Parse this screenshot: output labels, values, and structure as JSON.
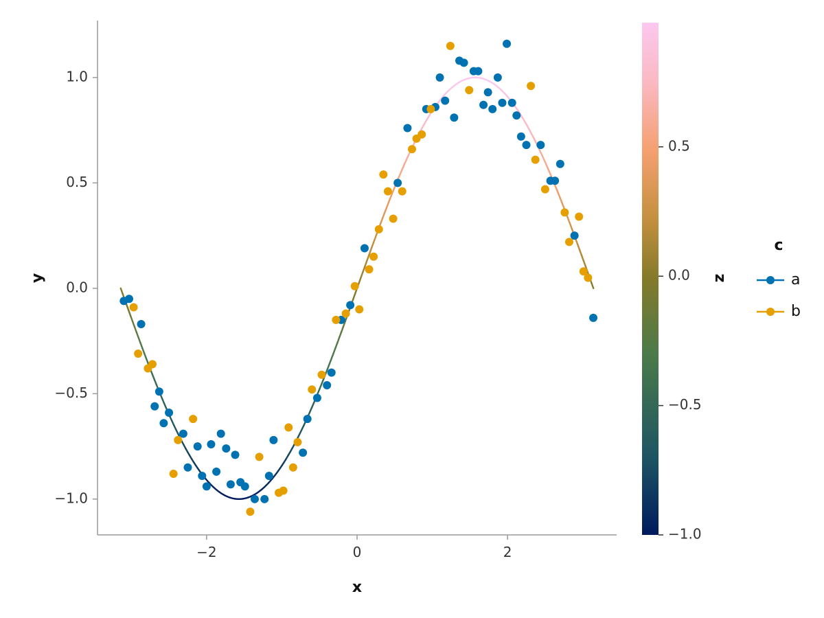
{
  "chart_data": {
    "type": "scatter",
    "xlabel": "x",
    "ylabel": "y",
    "xlim": [
      -3.45,
      3.45
    ],
    "ylim": [
      -1.17,
      1.27
    ],
    "x_ticks": [
      -2,
      0,
      2
    ],
    "x_tick_labels": [
      "−2",
      "0",
      "2"
    ],
    "y_ticks": [
      -1.0,
      -0.5,
      0.0,
      0.5,
      1.0
    ],
    "y_tick_labels": [
      "−1.0",
      "−0.5",
      "0.0",
      "0.5",
      "1.0"
    ],
    "grid": false,
    "curve": {
      "function": "sin(x)",
      "x_range": [
        -3.1416,
        3.1416
      ],
      "colored_by": "z"
    },
    "colorbar": {
      "label": "z",
      "range": [
        -1.0,
        0.98
      ],
      "ticks": [
        -1.0,
        -0.5,
        0.0,
        0.5
      ],
      "tick_labels": [
        "−1.0",
        "−0.5",
        "0.0",
        "0.5"
      ],
      "colormap": [
        "#001a5e",
        "#1d5463",
        "#4a7a4a",
        "#847a2a",
        "#c59040",
        "#f4a070",
        "#fab8c0",
        "#fcc8f0"
      ],
      "colormap_positions": [
        0.0,
        0.15,
        0.35,
        0.5,
        0.62,
        0.75,
        0.88,
        1.0
      ]
    },
    "legend": {
      "title": "c",
      "placement": "right",
      "entries": [
        {
          "label": "a",
          "color": "#0072B2"
        },
        {
          "label": "b",
          "color": "#E69F00"
        }
      ]
    },
    "series": [
      {
        "name": "a",
        "color": "#0072B2",
        "points": [
          [
            -3.1,
            -0.06
          ],
          [
            -3.03,
            -0.05
          ],
          [
            -2.87,
            -0.17
          ],
          [
            -2.63,
            -0.49
          ],
          [
            -2.69,
            -0.56
          ],
          [
            -2.57,
            -0.64
          ],
          [
            -2.5,
            -0.59
          ],
          [
            -2.31,
            -0.69
          ],
          [
            -2.25,
            -0.85
          ],
          [
            -2.12,
            -0.75
          ],
          [
            -2.06,
            -0.89
          ],
          [
            -2.0,
            -0.94
          ],
          [
            -1.94,
            -0.74
          ],
          [
            -1.87,
            -0.87
          ],
          [
            -1.81,
            -0.69
          ],
          [
            -1.74,
            -0.76
          ],
          [
            -1.68,
            -0.93
          ],
          [
            -1.62,
            -0.79
          ],
          [
            -1.55,
            -0.92
          ],
          [
            -1.49,
            -0.94
          ],
          [
            -1.36,
            -1.0
          ],
          [
            -1.23,
            -1.0
          ],
          [
            -1.17,
            -0.89
          ],
          [
            -1.11,
            -0.72
          ],
          [
            -0.72,
            -0.78
          ],
          [
            -0.66,
            -0.62
          ],
          [
            -0.53,
            -0.52
          ],
          [
            -0.4,
            -0.46
          ],
          [
            -0.34,
            -0.4
          ],
          [
            -0.21,
            -0.15
          ],
          [
            -0.09,
            -0.08
          ],
          [
            0.1,
            0.19
          ],
          [
            0.54,
            0.5
          ],
          [
            0.67,
            0.76
          ],
          [
            0.92,
            0.85
          ],
          [
            1.04,
            0.86
          ],
          [
            1.1,
            1.0
          ],
          [
            1.17,
            0.89
          ],
          [
            1.29,
            0.81
          ],
          [
            1.36,
            1.08
          ],
          [
            1.42,
            1.07
          ],
          [
            1.55,
            1.03
          ],
          [
            1.61,
            1.03
          ],
          [
            1.68,
            0.87
          ],
          [
            1.74,
            0.93
          ],
          [
            1.8,
            0.85
          ],
          [
            1.87,
            1.0
          ],
          [
            1.93,
            0.88
          ],
          [
            1.99,
            1.16
          ],
          [
            2.06,
            0.88
          ],
          [
            2.12,
            0.82
          ],
          [
            2.18,
            0.72
          ],
          [
            2.25,
            0.68
          ],
          [
            2.44,
            0.68
          ],
          [
            2.57,
            0.51
          ],
          [
            2.63,
            0.51
          ],
          [
            2.7,
            0.59
          ],
          [
            2.89,
            0.25
          ],
          [
            3.14,
            -0.14
          ]
        ]
      },
      {
        "name": "b",
        "color": "#E69F00",
        "points": [
          [
            -2.97,
            -0.09
          ],
          [
            -2.91,
            -0.31
          ],
          [
            -2.78,
            -0.38
          ],
          [
            -2.72,
            -0.36
          ],
          [
            -2.44,
            -0.88
          ],
          [
            -2.38,
            -0.72
          ],
          [
            -2.18,
            -0.62
          ],
          [
            -1.42,
            -1.06
          ],
          [
            -1.3,
            -0.8
          ],
          [
            -1.04,
            -0.97
          ],
          [
            -0.98,
            -0.96
          ],
          [
            -0.91,
            -0.66
          ],
          [
            -0.85,
            -0.85
          ],
          [
            -0.79,
            -0.73
          ],
          [
            -0.6,
            -0.48
          ],
          [
            -0.47,
            -0.41
          ],
          [
            -0.28,
            -0.15
          ],
          [
            -0.15,
            -0.12
          ],
          [
            -0.03,
            0.01
          ],
          [
            0.03,
            -0.1
          ],
          [
            0.16,
            0.09
          ],
          [
            0.22,
            0.15
          ],
          [
            0.29,
            0.28
          ],
          [
            0.35,
            0.54
          ],
          [
            0.41,
            0.46
          ],
          [
            0.48,
            0.33
          ],
          [
            0.6,
            0.46
          ],
          [
            0.73,
            0.66
          ],
          [
            0.79,
            0.71
          ],
          [
            0.86,
            0.73
          ],
          [
            0.98,
            0.85
          ],
          [
            1.24,
            1.15
          ],
          [
            1.49,
            0.94
          ],
          [
            2.31,
            0.96
          ],
          [
            2.37,
            0.61
          ],
          [
            2.5,
            0.47
          ],
          [
            2.76,
            0.36
          ],
          [
            2.82,
            0.22
          ],
          [
            2.95,
            0.34
          ],
          [
            3.01,
            0.08
          ],
          [
            3.07,
            0.05
          ]
        ]
      }
    ]
  }
}
